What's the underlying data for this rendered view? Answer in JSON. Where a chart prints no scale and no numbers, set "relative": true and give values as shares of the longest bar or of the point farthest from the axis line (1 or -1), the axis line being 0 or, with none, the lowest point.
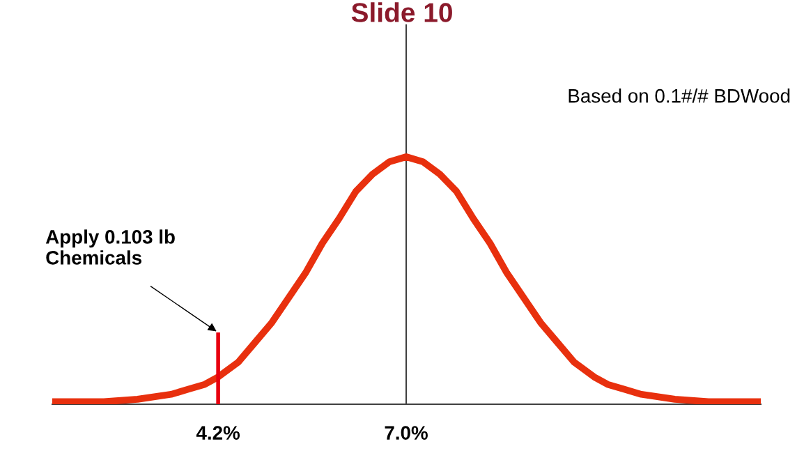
{
  "chart_data": {
    "type": "line",
    "title": "Slide 10",
    "relative": true,
    "x": [
      1.73,
      2.5,
      3.0,
      3.5,
      3.75,
      4.0,
      4.2,
      4.5,
      4.75,
      5.0,
      5.25,
      5.5,
      5.75,
      6.0,
      6.25,
      6.5,
      6.75,
      7.0,
      7.25,
      7.5,
      7.75,
      8.0,
      8.25,
      8.5,
      8.75,
      9.0,
      9.25,
      9.5,
      9.8,
      10.0,
      10.25,
      10.5,
      11.0,
      11.5,
      12.28
    ],
    "series": [
      {
        "color": "#e8300e",
        "values": [
          0.01,
          0.01,
          0.02,
          0.04,
          0.06,
          0.08,
          0.11,
          0.17,
          0.25,
          0.33,
          0.43,
          0.53,
          0.65,
          0.75,
          0.86,
          0.93,
          0.98,
          1,
          0.98,
          0.93,
          0.86,
          0.75,
          0.65,
          0.53,
          0.43,
          0.33,
          0.25,
          0.17,
          0.11,
          0.08,
          0.06,
          0.04,
          0.02,
          0.01,
          0.01
        ]
      },
      {
        "color": "#e8000e",
        "x": [
          4.2,
          4.2
        ],
        "values": [
          0,
          0.29
        ]
      }
    ],
    "xlim": [
      1.73,
      12.28
    ],
    "xticks": [
      {
        "value": 4.2,
        "label": "4.2%"
      },
      {
        "value": 7.0,
        "label": "7.0%"
      }
    ],
    "ref_lines": [
      {
        "axis": "x",
        "value": 7.0,
        "color": "#404040"
      }
    ],
    "annotations": [
      {
        "text": "Apply 0.103 lb\nChemicals",
        "x": 4.2,
        "y": 0.29
      },
      "Based on 0.1#/# BDWood"
    ],
    "grid": false,
    "legend": false,
    "marker": "none",
    "line_style": "solid"
  }
}
